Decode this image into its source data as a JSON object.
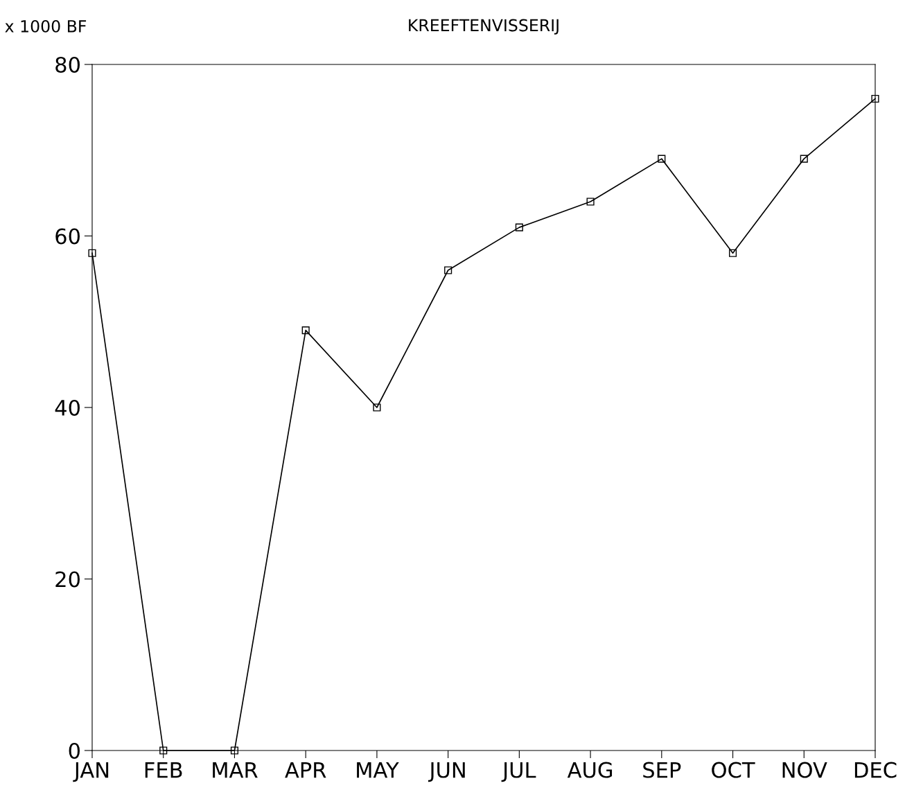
{
  "chart_data": {
    "type": "line",
    "title": "KREEFTENVISSERIJ",
    "ylabel": "x 1000 BF",
    "categories": [
      "JAN",
      "FEB",
      "MAR",
      "APR",
      "MAY",
      "JUN",
      "JUL",
      "AUG",
      "SEP",
      "OCT",
      "NOV",
      "DEC"
    ],
    "series": [
      {
        "color": "#000000",
        "values": [
          58,
          0,
          0,
          49,
          40,
          56,
          61,
          64,
          69,
          58,
          69,
          76
        ]
      }
    ],
    "ylim": [
      0,
      80
    ],
    "yticks": [
      0,
      20,
      40,
      60,
      80
    ],
    "grid": false,
    "marker": "square",
    "line_style": "solid"
  }
}
